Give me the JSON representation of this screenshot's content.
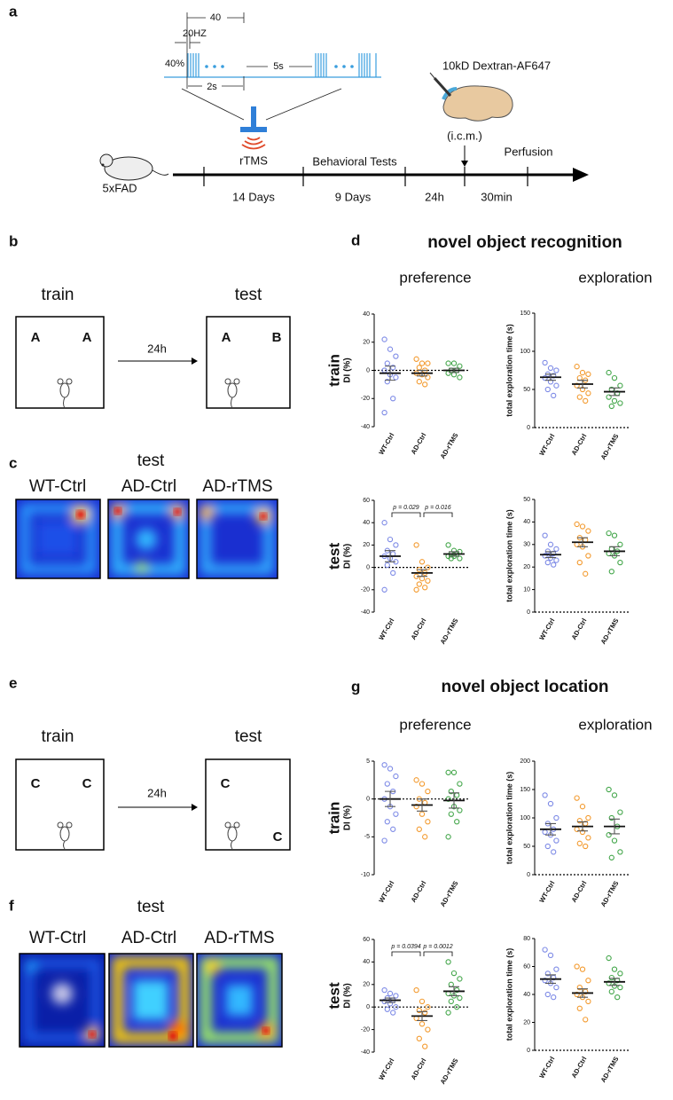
{
  "panel_a": {
    "letter": "a",
    "pulse_interval": "40",
    "frequency": "20HZ",
    "intensity": "40%",
    "rest": "5s",
    "train_duration": "2s",
    "stimulation": "rTMS",
    "tracer": "10kD Dextran-AF647",
    "injection": "(i.c.m.)",
    "model": "5xFAD",
    "behavior": "Behavioral Tests",
    "perfusion": "Perfusion",
    "durations": [
      "14 Days",
      "9 Days",
      "24h",
      "30min"
    ]
  },
  "panel_b": {
    "letter": "b",
    "train": "train",
    "test": "test",
    "delay": "24h",
    "train_objects": [
      "A",
      "A"
    ],
    "test_objects": [
      "A",
      "B"
    ]
  },
  "panel_c": {
    "letter": "c",
    "title": "test",
    "groups": [
      "WT-Ctrl",
      "AD-Ctrl",
      "AD-rTMS"
    ]
  },
  "panel_d": {
    "letter": "d",
    "title": "novel object recognition",
    "columns": [
      "preference",
      "exploration"
    ]
  },
  "panel_e": {
    "letter": "e",
    "train": "train",
    "test": "test",
    "delay": "24h",
    "train_objects": [
      "C",
      "C"
    ],
    "test_objects": [
      "C",
      "C"
    ]
  },
  "panel_f": {
    "letter": "f",
    "title": "test",
    "groups": [
      "WT-Ctrl",
      "AD-Ctrl",
      "AD-rTMS"
    ]
  },
  "panel_g": {
    "letter": "g",
    "title": "novel object location",
    "columns": [
      "preference",
      "exploration"
    ]
  },
  "chart_data": [
    {
      "type": "strip",
      "row_label": "train",
      "ylabel": "DI (%)",
      "categories": [
        "WT-Ctrl",
        "AD-Ctrl",
        "AD-rTMS"
      ],
      "ylim": [
        -40,
        40
      ],
      "yticks": [
        -40,
        -20,
        0,
        20,
        40
      ],
      "series": [
        {
          "color": "#7d8ae6",
          "values": [
            22,
            15,
            10,
            5,
            2,
            0,
            -3,
            -5,
            -8,
            -20,
            -30
          ],
          "mean": -2,
          "sem": 5
        },
        {
          "color": "#f39a2e",
          "values": [
            8,
            5,
            5,
            2,
            0,
            -2,
            -3,
            -5,
            -8,
            -10
          ],
          "mean": -2,
          "sem": 2
        },
        {
          "color": "#43a64a",
          "values": [
            5,
            5,
            3,
            0,
            0,
            -2,
            -3,
            -5
          ],
          "mean": 0,
          "sem": 1.5
        }
      ]
    },
    {
      "type": "strip",
      "ylabel": "total exploration time (s)",
      "categories": [
        "WT-Ctrl",
        "AD-Ctrl",
        "AD-rTMS"
      ],
      "ylim": [
        0,
        150
      ],
      "yticks": [
        0,
        50,
        100,
        150
      ],
      "series": [
        {
          "color": "#7d8ae6",
          "values": [
            85,
            78,
            75,
            70,
            68,
            65,
            60,
            55,
            50,
            42
          ],
          "mean": 66,
          "sem": 4
        },
        {
          "color": "#f39a2e",
          "values": [
            80,
            72,
            70,
            65,
            62,
            55,
            50,
            45,
            40,
            35
          ],
          "mean": 57,
          "sem": 5
        },
        {
          "color": "#43a64a",
          "values": [
            72,
            65,
            55,
            50,
            45,
            40,
            35,
            32,
            28
          ],
          "mean": 47,
          "sem": 5
        }
      ]
    },
    {
      "type": "strip",
      "row_label": "test",
      "ylabel": "DI (%)",
      "categories": [
        "WT-Ctrl",
        "AD-Ctrl",
        "AD-rTMS"
      ],
      "ylim": [
        -40,
        60
      ],
      "yticks": [
        -40,
        -20,
        0,
        20,
        40,
        60
      ],
      "series": [
        {
          "color": "#7d8ae6",
          "values": [
            40,
            25,
            20,
            15,
            12,
            10,
            8,
            5,
            2,
            -5,
            -20
          ],
          "mean": 10,
          "sem": 5
        },
        {
          "color": "#f39a2e",
          "values": [
            20,
            5,
            0,
            -2,
            -5,
            -8,
            -10,
            -12,
            -15,
            -18,
            -20
          ],
          "mean": -5,
          "sem": 3
        },
        {
          "color": "#43a64a",
          "values": [
            20,
            15,
            14,
            12,
            12,
            10,
            10,
            8,
            8
          ],
          "mean": 12,
          "sem": 2
        }
      ],
      "annotations": [
        "p = 0.029",
        "p = 0.016"
      ]
    },
    {
      "type": "strip",
      "ylabel": "total exploration time (s)",
      "categories": [
        "WT-Ctrl",
        "AD-Ctrl",
        "AD-rTMS"
      ],
      "ylim": [
        0,
        50
      ],
      "yticks": [
        0,
        10,
        20,
        30,
        40,
        50
      ],
      "series": [
        {
          "color": "#7d8ae6",
          "values": [
            34,
            30,
            28,
            27,
            26,
            25,
            24,
            23,
            22,
            21
          ],
          "mean": 25.5,
          "sem": 1.3
        },
        {
          "color": "#f39a2e",
          "values": [
            39,
            38,
            36,
            33,
            32,
            30,
            29,
            25,
            22,
            17
          ],
          "mean": 31,
          "sem": 2
        },
        {
          "color": "#43a64a",
          "values": [
            35,
            34,
            30,
            28,
            27,
            26,
            25,
            22,
            18
          ],
          "mean": 27,
          "sem": 2
        }
      ]
    },
    {
      "type": "strip",
      "row_label": "train",
      "ylabel": "DI (%)",
      "categories": [
        "WT-Ctrl",
        "AD-Ctrl",
        "AD-rTMS"
      ],
      "ylim": [
        -10,
        5
      ],
      "yticks": [
        -10,
        -5,
        0,
        5
      ],
      "series": [
        {
          "color": "#7d8ae6",
          "values": [
            4.5,
            4,
            3,
            2,
            1,
            0,
            -1,
            -2,
            -3,
            -4,
            -5.5
          ],
          "mean": 0,
          "sem": 1
        },
        {
          "color": "#f39a2e",
          "values": [
            2.5,
            2,
            1,
            0,
            -0.5,
            -1,
            -2,
            -3,
            -4,
            -5
          ],
          "mean": -0.8,
          "sem": 0.8
        },
        {
          "color": "#43a64a",
          "values": [
            3.5,
            3.5,
            2,
            1,
            0.5,
            0,
            -1,
            -1.5,
            -2,
            -3,
            -5
          ],
          "mean": -0.2,
          "sem": 1
        }
      ]
    },
    {
      "type": "strip",
      "ylabel": "total exploration time (s)",
      "categories": [
        "WT-Ctrl",
        "AD-Ctrl",
        "AD-rTMS"
      ],
      "ylim": [
        0,
        200
      ],
      "yticks": [
        0,
        50,
        100,
        150,
        200
      ],
      "series": [
        {
          "color": "#7d8ae6",
          "values": [
            140,
            125,
            100,
            90,
            80,
            75,
            70,
            60,
            50,
            40
          ],
          "mean": 80,
          "sem": 10
        },
        {
          "color": "#f39a2e",
          "values": [
            135,
            120,
            100,
            95,
            90,
            80,
            75,
            65,
            55,
            50
          ],
          "mean": 85,
          "sem": 8
        },
        {
          "color": "#43a64a",
          "values": [
            150,
            140,
            110,
            100,
            85,
            70,
            60,
            40,
            30
          ],
          "mean": 85,
          "sem": 13
        }
      ]
    },
    {
      "type": "strip",
      "row_label": "test",
      "ylabel": "DI (%)",
      "categories": [
        "WT-Ctrl",
        "AD-Ctrl",
        "AD-rTMS"
      ],
      "ylim": [
        -40,
        60
      ],
      "yticks": [
        -40,
        -20,
        0,
        20,
        40,
        60
      ],
      "series": [
        {
          "color": "#7d8ae6",
          "values": [
            15,
            12,
            10,
            8,
            6,
            5,
            3,
            0,
            -2,
            -5
          ],
          "mean": 6,
          "sem": 2
        },
        {
          "color": "#f39a2e",
          "values": [
            15,
            5,
            0,
            -3,
            -5,
            -10,
            -15,
            -20,
            -28,
            -35
          ],
          "mean": -8,
          "sem": 4
        },
        {
          "color": "#43a64a",
          "values": [
            40,
            30,
            25,
            20,
            15,
            12,
            10,
            8,
            5,
            0,
            -5
          ],
          "mean": 14,
          "sem": 4
        }
      ],
      "annotations": [
        "p = 0.0394",
        "p = 0.0012"
      ]
    },
    {
      "type": "strip",
      "ylabel": "total exploration time (s)",
      "categories": [
        "WT-Ctrl",
        "AD-Ctrl",
        "AD-rTMS"
      ],
      "ylim": [
        0,
        80
      ],
      "yticks": [
        0,
        20,
        40,
        60,
        80
      ],
      "series": [
        {
          "color": "#7d8ae6",
          "values": [
            72,
            68,
            58,
            55,
            52,
            50,
            48,
            45,
            40,
            38
          ],
          "mean": 51,
          "sem": 3
        },
        {
          "color": "#f39a2e",
          "values": [
            60,
            58,
            50,
            45,
            42,
            40,
            38,
            35,
            30,
            22
          ],
          "mean": 41,
          "sem": 3
        },
        {
          "color": "#43a64a",
          "values": [
            66,
            58,
            55,
            52,
            50,
            48,
            46,
            45,
            42,
            38
          ],
          "mean": 49,
          "sem": 2.5
        }
      ]
    }
  ]
}
